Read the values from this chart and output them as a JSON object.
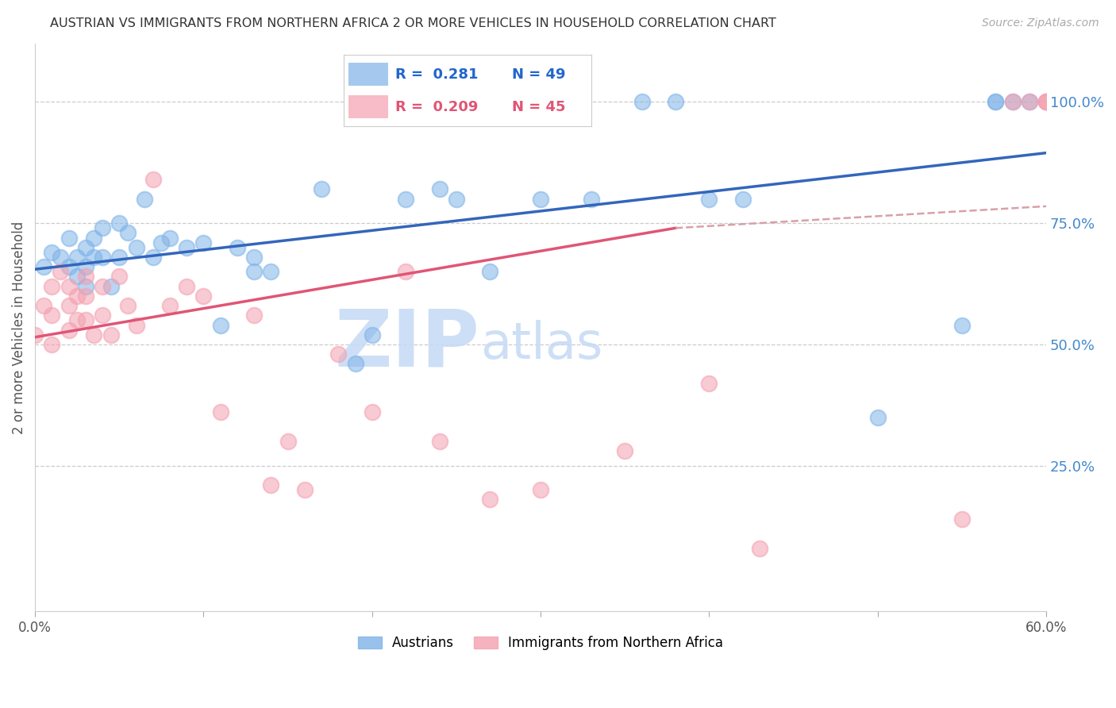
{
  "title": "AUSTRIAN VS IMMIGRANTS FROM NORTHERN AFRICA 2 OR MORE VEHICLES IN HOUSEHOLD CORRELATION CHART",
  "source": "Source: ZipAtlas.com",
  "ylabel": "2 or more Vehicles in Household",
  "xlim": [
    0.0,
    0.6
  ],
  "ylim": [
    -0.05,
    1.12
  ],
  "xtick_positions": [
    0.0,
    0.1,
    0.2,
    0.3,
    0.4,
    0.5,
    0.6
  ],
  "xticklabels": [
    "0.0%",
    "",
    "",
    "",
    "",
    "",
    "60.0%"
  ],
  "yticks_right": [
    1.0,
    0.75,
    0.5,
    0.25
  ],
  "ytick_right_labels": [
    "100.0%",
    "75.0%",
    "50.0%",
    "25.0%"
  ],
  "blue_scatter_color": "#7fb3e8",
  "pink_scatter_color": "#f4a0b0",
  "blue_line_color": "#3366bb",
  "pink_line_color": "#e05575",
  "dash_line_color": "#d8a0aa",
  "watermark_zip": "ZIP",
  "watermark_atlas": "atlas",
  "watermark_color": "#c5daf5",
  "legend_R_blue": "0.281",
  "legend_N_blue": "49",
  "legend_R_pink": "0.209",
  "legend_N_pink": "45",
  "blue_x": [
    0.005,
    0.01,
    0.015,
    0.02,
    0.02,
    0.025,
    0.025,
    0.03,
    0.03,
    0.03,
    0.035,
    0.035,
    0.04,
    0.04,
    0.045,
    0.05,
    0.05,
    0.055,
    0.06,
    0.065,
    0.07,
    0.075,
    0.08,
    0.09,
    0.1,
    0.11,
    0.12,
    0.13,
    0.13,
    0.14,
    0.17,
    0.19,
    0.2,
    0.22,
    0.24,
    0.25,
    0.27,
    0.3,
    0.33,
    0.36,
    0.38,
    0.4,
    0.42,
    0.5,
    0.55,
    0.57,
    0.57,
    0.58,
    0.59
  ],
  "blue_y": [
    0.66,
    0.69,
    0.68,
    0.72,
    0.66,
    0.68,
    0.64,
    0.7,
    0.66,
    0.62,
    0.72,
    0.68,
    0.74,
    0.68,
    0.62,
    0.75,
    0.68,
    0.73,
    0.7,
    0.8,
    0.68,
    0.71,
    0.72,
    0.7,
    0.71,
    0.54,
    0.7,
    0.68,
    0.65,
    0.65,
    0.82,
    0.46,
    0.52,
    0.8,
    0.82,
    0.8,
    0.65,
    0.8,
    0.8,
    1.0,
    1.0,
    0.8,
    0.8,
    0.35,
    0.54,
    1.0,
    1.0,
    1.0,
    1.0
  ],
  "pink_x": [
    0.0,
    0.005,
    0.01,
    0.01,
    0.01,
    0.015,
    0.02,
    0.02,
    0.02,
    0.025,
    0.025,
    0.03,
    0.03,
    0.03,
    0.035,
    0.04,
    0.04,
    0.045,
    0.05,
    0.055,
    0.06,
    0.07,
    0.08,
    0.09,
    0.1,
    0.11,
    0.13,
    0.14,
    0.15,
    0.16,
    0.18,
    0.2,
    0.22,
    0.24,
    0.27,
    0.3,
    0.35,
    0.4,
    0.43,
    0.55,
    0.58,
    0.59,
    0.6,
    0.6,
    0.6
  ],
  "pink_y": [
    0.52,
    0.58,
    0.62,
    0.56,
    0.5,
    0.65,
    0.62,
    0.58,
    0.53,
    0.6,
    0.55,
    0.64,
    0.6,
    0.55,
    0.52,
    0.62,
    0.56,
    0.52,
    0.64,
    0.58,
    0.54,
    0.84,
    0.58,
    0.62,
    0.6,
    0.36,
    0.56,
    0.21,
    0.3,
    0.2,
    0.48,
    0.36,
    0.65,
    0.3,
    0.18,
    0.2,
    0.28,
    0.42,
    0.08,
    0.14,
    1.0,
    1.0,
    1.0,
    1.0,
    1.0
  ],
  "blue_trend": [
    0.0,
    0.6,
    0.655,
    0.895
  ],
  "pink_trend_solid": [
    0.0,
    0.38,
    0.515,
    0.74
  ],
  "pink_trend_dash": [
    0.38,
    0.6,
    0.74,
    0.785
  ]
}
